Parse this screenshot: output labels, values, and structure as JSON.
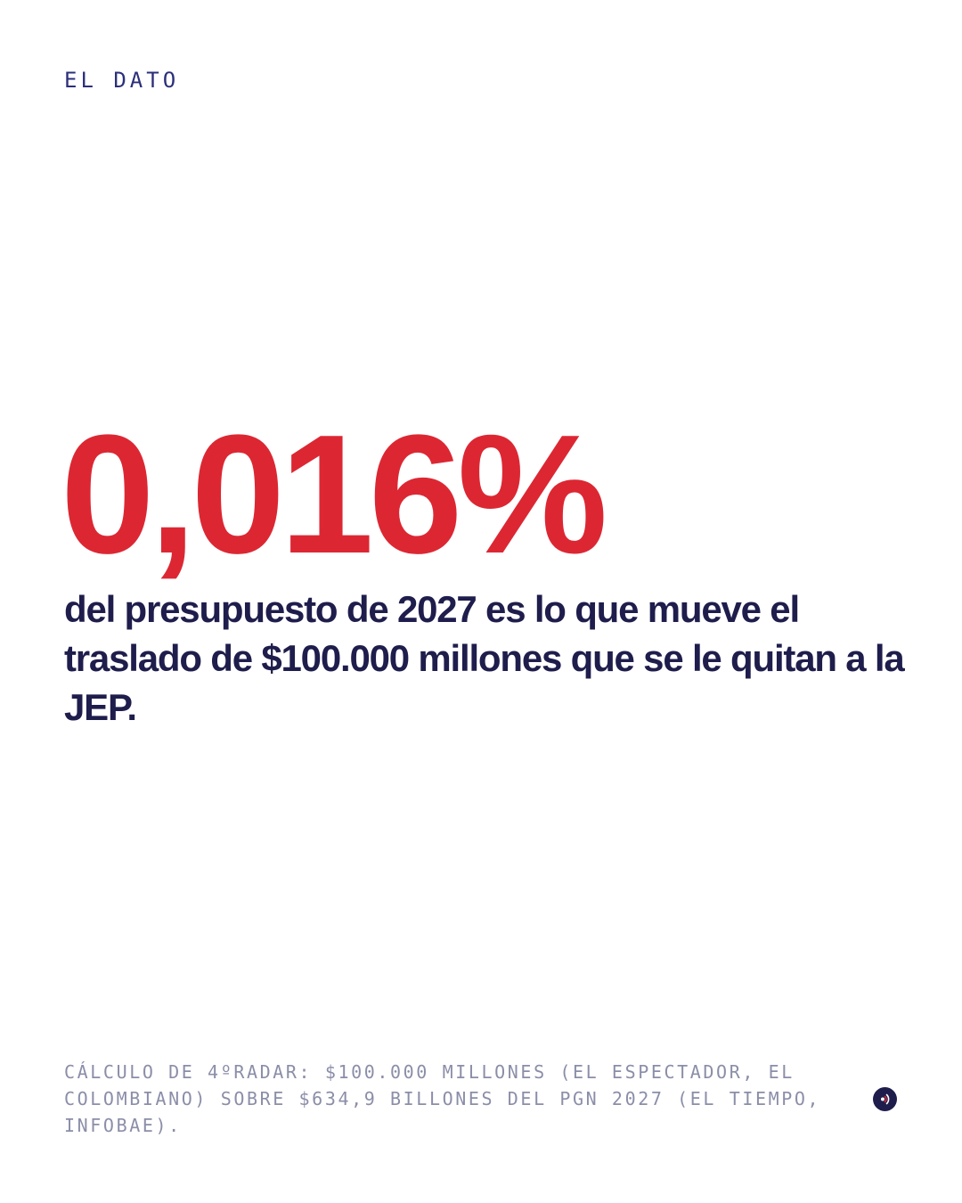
{
  "kicker": "EL DATO",
  "headline": {
    "figure": "0,016%",
    "statement": "del presupuesto de 2027 es lo que mueve el traslado de $100.000 millones que se le quitan a la JEP."
  },
  "footnote": "CÁLCULO DE 4ºRADAR: $100.000 MILLONES (EL ESPECTADOR, EL COLOMBIANO) SOBRE $634,9 BILLONES DEL PGN 2027 (EL TIEMPO, INFOBAE).",
  "brand": {
    "icon": "radar-signal-icon",
    "colors": {
      "mark_bg": "#1e1d4c",
      "mark_accent": "#dc2733",
      "figure": "#dc2733",
      "text": "#1e1d4c",
      "kicker": "#2b2f7a",
      "footnote": "#8b8ea8"
    }
  }
}
